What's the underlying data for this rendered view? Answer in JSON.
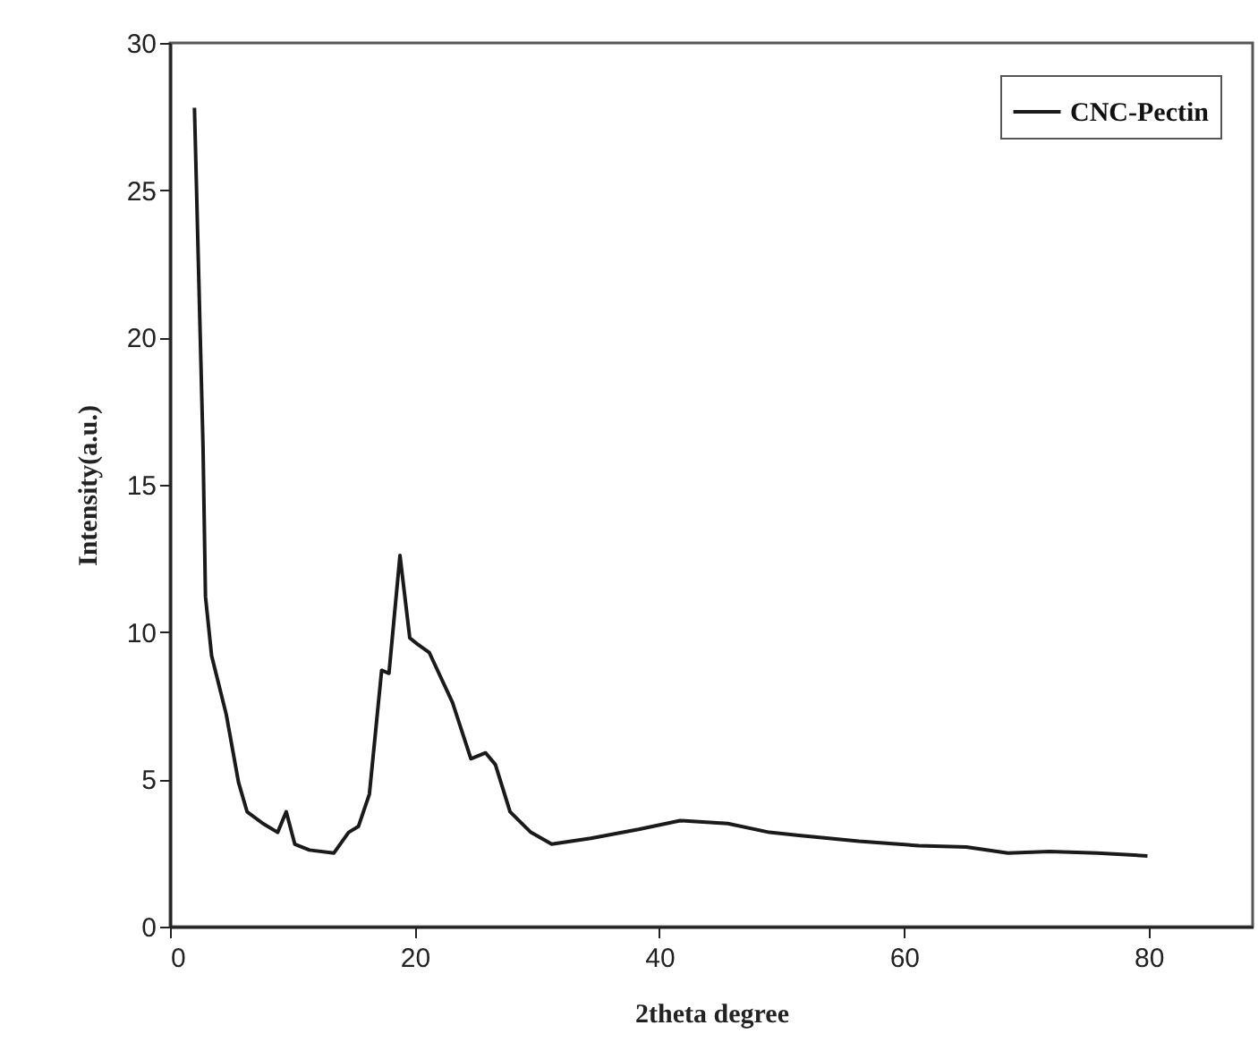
{
  "chart_data": {
    "type": "line",
    "xlabel": "2theta degree",
    "ylabel": "Intensity(a.u.)",
    "x": [
      2.0,
      2.7,
      2.9,
      3.4,
      4.6,
      5.6,
      6.3,
      7.6,
      8.8,
      9.5,
      10.2,
      11.4,
      13.4,
      14.6,
      15.4,
      16.3,
      17.3,
      17.9,
      18.8,
      19.6,
      20.2,
      21.2,
      23.1,
      24.6,
      25.8,
      26.6,
      27.8,
      29.5,
      31.2,
      34.4,
      38.3,
      41.7,
      45.6,
      49.0,
      51.4,
      56.3,
      61.2,
      65.1,
      68.5,
      71.9,
      75.8,
      79.9
    ],
    "series": [
      {
        "name": "CNC-Pectin",
        "color": "#1a1a1a",
        "values": [
          27.8,
          16.3,
          11.2,
          9.2,
          7.2,
          4.9,
          3.9,
          3.5,
          3.2,
          3.9,
          2.8,
          2.6,
          2.5,
          3.2,
          3.4,
          4.5,
          8.7,
          8.6,
          12.6,
          9.8,
          9.6,
          9.3,
          7.6,
          5.7,
          5.9,
          5.5,
          3.9,
          3.2,
          2.8,
          3.0,
          3.3,
          3.6,
          3.5,
          3.2,
          3.1,
          2.9,
          2.75,
          2.7,
          2.5,
          2.55,
          2.5,
          2.4
        ]
      }
    ],
    "xlim": [
      0,
      88.5
    ],
    "xticks": [
      0,
      20,
      40,
      60,
      80
    ],
    "ylim": [
      0,
      30
    ],
    "yticks": [
      0,
      5,
      10,
      15,
      20,
      25,
      30
    ],
    "grid": false,
    "legend": "top right",
    "line_style": "solid",
    "marker": "none"
  }
}
